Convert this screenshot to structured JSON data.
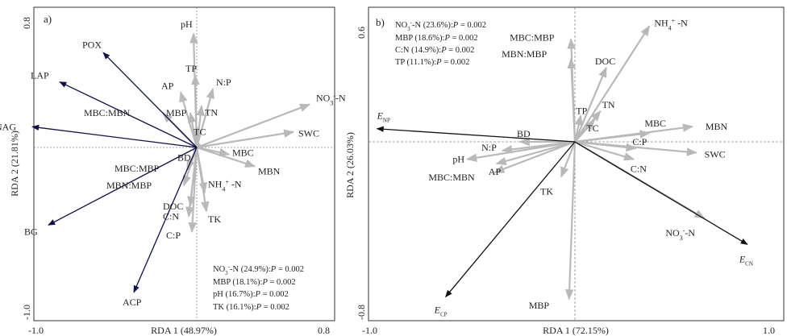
{
  "chart_data": [
    {
      "type": "scatter",
      "panel_label": "a)",
      "xlabel": "RDA 1 (48.97%)",
      "ylabel": "RDA 2 (21.81%)",
      "xlim": [
        -1.0,
        0.8
      ],
      "ylim": [
        -1.0,
        0.8
      ],
      "x_ticks": [
        "-1.0",
        "0.8"
      ],
      "y_ticks": [
        "0.8",
        "-1.0"
      ],
      "response_vectors": [
        {
          "name": "POX",
          "x": -0.58,
          "y": 0.55
        },
        {
          "name": "LAP",
          "x": -0.85,
          "y": 0.38
        },
        {
          "name": "NAG",
          "x": -1.02,
          "y": 0.12
        },
        {
          "name": "BG",
          "x": -0.92,
          "y": -0.45
        },
        {
          "name": "ACP",
          "x": -0.39,
          "y": -0.84
        }
      ],
      "explanatory_vectors": [
        {
          "name": "pH",
          "x": -0.02,
          "y": 0.66
        },
        {
          "name": "TP",
          "x": -0.01,
          "y": 0.42
        },
        {
          "name": "N:P",
          "x": 0.1,
          "y": 0.34
        },
        {
          "name": "AP",
          "x": -0.1,
          "y": 0.32
        },
        {
          "name": "TN",
          "x": 0.03,
          "y": 0.24
        },
        {
          "name": "MBP",
          "x": -0.04,
          "y": 0.2
        },
        {
          "name": "MBC:MBN",
          "x": -0.21,
          "y": 0.2
        },
        {
          "name": "TC",
          "x": 0.0,
          "y": 0.12
        },
        {
          "name": "NO3--N",
          "x": 0.7,
          "y": 0.25
        },
        {
          "name": "SWC",
          "x": 0.6,
          "y": 0.09
        },
        {
          "name": "MBC",
          "x": 0.2,
          "y": -0.04
        },
        {
          "name": "MBN",
          "x": 0.36,
          "y": -0.11
        },
        {
          "name": "BD",
          "x": -0.02,
          "y": -0.02
        },
        {
          "name": "MBC:MBP",
          "x": -0.06,
          "y": -0.13
        },
        {
          "name": "MBN:MBP",
          "x": -0.08,
          "y": -0.22
        },
        {
          "name": "NH4+-N",
          "x": 0.05,
          "y": -0.26
        },
        {
          "name": "DOC",
          "x": -0.04,
          "y": -0.34
        },
        {
          "name": "TK",
          "x": 0.06,
          "y": -0.37
        },
        {
          "name": "C:N",
          "x": -0.05,
          "y": -0.4
        },
        {
          "name": "C:P",
          "x": -0.03,
          "y": -0.49
        }
      ],
      "annotations": [
        "NO3--N (24.9%):P = 0.002",
        "MBP (18.1%):P = 0.002",
        "pH (16.7%):P = 0.002",
        "TK (16.1%):P = 0.002"
      ]
    },
    {
      "type": "scatter",
      "panel_label": "b)",
      "xlabel": "RDA 1 (72.15%)",
      "ylabel": "RDA 2 (26.03%)",
      "xlim": [
        -1.0,
        1.0
      ],
      "ylim": [
        -0.8,
        0.6
      ],
      "x_ticks": [
        "-1.0",
        "1.0"
      ],
      "y_ticks": [
        "0.6",
        "-0.8"
      ],
      "response_vectors": [
        {
          "name": "ENP",
          "x": -1.01,
          "y": 0.06
        },
        {
          "name": "ECN",
          "x": 0.88,
          "y": -0.47
        },
        {
          "name": "ECP",
          "x": -0.66,
          "y": -0.71
        }
      ],
      "explanatory_vectors": [
        {
          "name": "NH4+-N",
          "x": 0.38,
          "y": 0.53
        },
        {
          "name": "DOC",
          "x": 0.16,
          "y": 0.34
        },
        {
          "name": "MBC:MBP",
          "x": -0.02,
          "y": 0.47
        },
        {
          "name": "MBN:MBP",
          "x": -0.02,
          "y": 0.38
        },
        {
          "name": "TP",
          "x": 0.03,
          "y": 0.12
        },
        {
          "name": "TN",
          "x": 0.13,
          "y": 0.14
        },
        {
          "name": "TC",
          "x": 0.1,
          "y": 0.1
        },
        {
          "name": "MBC",
          "x": 0.38,
          "y": 0.04
        },
        {
          "name": "MBN",
          "x": 0.6,
          "y": 0.07
        },
        {
          "name": "C:P",
          "x": 0.31,
          "y": -0.03
        },
        {
          "name": "SWC",
          "x": 0.62,
          "y": -0.05
        },
        {
          "name": "C:N",
          "x": 0.3,
          "y": -0.08
        },
        {
          "name": "NO3--N",
          "x": 0.66,
          "y": -0.35
        },
        {
          "name": "BD",
          "x": -0.28,
          "y": 0.0
        },
        {
          "name": "N:P",
          "x": -0.37,
          "y": -0.04
        },
        {
          "name": "pH",
          "x": -0.55,
          "y": -0.08
        },
        {
          "name": "MBC:MBN",
          "x": -0.41,
          "y": -0.14
        },
        {
          "name": "AP",
          "x": -0.4,
          "y": -0.1
        },
        {
          "name": "TK",
          "x": -0.07,
          "y": -0.16
        },
        {
          "name": "MBP",
          "x": -0.03,
          "y": -0.72
        }
      ],
      "annotations": [
        "NO3--N (23.6%):P = 0.002",
        "MBP (18.6%):P = 0.002",
        "C:N (14.9%):P = 0.002",
        "TP (11.1%):P = 0.002"
      ]
    }
  ],
  "colors": {
    "response_arrow": "#10104a",
    "explanatory_arrow": "#b9b9b9",
    "axis_frame": "#333333",
    "reference_line": "#888888"
  }
}
